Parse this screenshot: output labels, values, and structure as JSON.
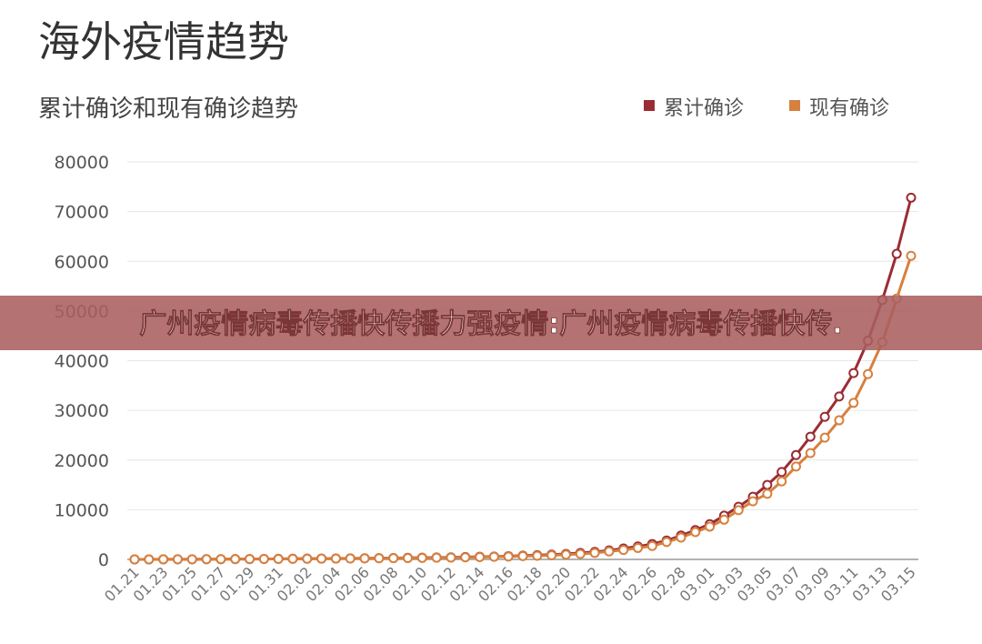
{
  "chart_data": {
    "type": "line",
    "title": "海外疫情趋势",
    "subtitle": "累计确诊和现有确诊趋势",
    "annotation": "广州疫情病毒传播快传播力强疫情:广州疫情病毒传播快传.",
    "categories": [
      "01.21",
      null,
      "01.23",
      null,
      "01.25",
      null,
      "01.27",
      null,
      "01.29",
      null,
      "01.31",
      null,
      "02.02",
      null,
      "02.04",
      null,
      "02.06",
      null,
      "02.08",
      null,
      "02.10",
      null,
      "02.12",
      null,
      "02.14",
      null,
      "02.16",
      null,
      "02.18",
      null,
      "02.20",
      null,
      "02.22",
      null,
      "02.24",
      null,
      "02.26",
      null,
      "02.28",
      null,
      "03.01",
      null,
      "03.03",
      null,
      "03.05",
      null,
      "03.07",
      null,
      "03.09",
      null,
      "03.11",
      null,
      "03.13",
      null,
      "03.15"
    ],
    "series": [
      {
        "name": "累计确诊",
        "color": "#9b2c35",
        "values": [
          5,
          10,
          15,
          20,
          30,
          40,
          50,
          65,
          80,
          95,
          110,
          130,
          150,
          170,
          190,
          210,
          230,
          250,
          280,
          310,
          340,
          380,
          420,
          470,
          520,
          580,
          650,
          750,
          850,
          950,
          1100,
          1300,
          1500,
          1800,
          2200,
          2600,
          3100,
          3800,
          4800,
          5900,
          7100,
          8800,
          10600,
          12600,
          15000,
          17600,
          21000,
          24700,
          28700,
          32800,
          37500,
          44000,
          52200,
          61500,
          72800
        ]
      },
      {
        "name": "现有确诊",
        "color": "#d6813f",
        "values": [
          5,
          9,
          13,
          18,
          27,
          36,
          45,
          58,
          72,
          85,
          99,
          117,
          135,
          153,
          170,
          188,
          205,
          224,
          250,
          278,
          305,
          340,
          375,
          420,
          465,
          520,
          580,
          660,
          730,
          830,
          950,
          1100,
          1300,
          1600,
          1900,
          2300,
          2700,
          3500,
          4400,
          5500,
          6600,
          8000,
          9900,
          11700,
          13200,
          15700,
          18700,
          21400,
          24500,
          28000,
          31500,
          37300,
          43700,
          52500,
          61100
        ]
      }
    ],
    "ylim": [
      0,
      80000
    ],
    "yticks": [
      0,
      10000,
      20000,
      30000,
      40000,
      50000,
      60000,
      70000,
      80000
    ],
    "grid": true,
    "legend": "top-right"
  }
}
